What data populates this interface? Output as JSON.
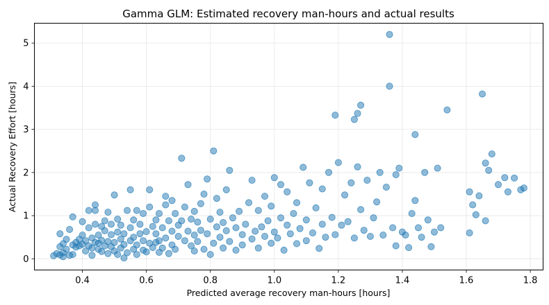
{
  "chart_data": {
    "type": "scatter",
    "title": "Gamma GLM: Estimated recovery man-hours and actual results",
    "xlabel": "Predicted average recovery man-hours [hours]",
    "ylabel": "Actual Recovery Effort [hours]",
    "xlim": [
      0.25,
      1.84
    ],
    "ylim": [
      -0.26,
      5.46
    ],
    "x_ticks": [
      0.4,
      0.6,
      0.8,
      1.0,
      1.2,
      1.4,
      1.6,
      1.8
    ],
    "x_tick_labels": [
      "0.4",
      "0.6",
      "0.8",
      "1.0",
      "1.2",
      "1.4",
      "1.6",
      "1.8"
    ],
    "y_ticks": [
      0,
      1,
      2,
      3,
      4,
      5
    ],
    "y_tick_labels": [
      "0",
      "1",
      "2",
      "3",
      "4",
      "5"
    ],
    "grid": true,
    "legend": "none",
    "point_color": "#1f77b4",
    "point_opacity": 0.5,
    "points": [
      [
        0.31,
        0.07
      ],
      [
        0.32,
        0.12
      ],
      [
        0.33,
        0.09
      ],
      [
        0.33,
        0.28
      ],
      [
        0.33,
        0.58
      ],
      [
        0.34,
        0.05
      ],
      [
        0.34,
        0.35
      ],
      [
        0.34,
        0.14
      ],
      [
        0.35,
        0.22
      ],
      [
        0.35,
        0.45
      ],
      [
        0.36,
        0.08
      ],
      [
        0.36,
        0.68
      ],
      [
        0.37,
        0.32
      ],
      [
        0.37,
        0.97
      ],
      [
        0.37,
        0.1
      ],
      [
        0.38,
        0.27
      ],
      [
        0.38,
        0.38
      ],
      [
        0.39,
        0.45
      ],
      [
        0.39,
        0.3
      ],
      [
        0.4,
        0.55
      ],
      [
        0.4,
        0.34
      ],
      [
        0.4,
        0.86
      ],
      [
        0.41,
        0.18
      ],
      [
        0.41,
        0.42
      ],
      [
        0.42,
        0.3
      ],
      [
        0.42,
        0.72
      ],
      [
        0.42,
        1.12
      ],
      [
        0.43,
        0.08
      ],
      [
        0.43,
        0.25
      ],
      [
        0.43,
        0.48
      ],
      [
        0.44,
        0.38
      ],
      [
        0.44,
        0.8
      ],
      [
        0.44,
        1.25
      ],
      [
        0.44,
        1.12
      ],
      [
        0.45,
        0.22
      ],
      [
        0.45,
        0.55
      ],
      [
        0.45,
        0.36
      ],
      [
        0.46,
        0.17
      ],
      [
        0.46,
        0.75
      ],
      [
        0.46,
        0.43
      ],
      [
        0.47,
        0.3
      ],
      [
        0.47,
        0.65
      ],
      [
        0.47,
        0.88
      ],
      [
        0.48,
        0.12
      ],
      [
        0.48,
        0.4
      ],
      [
        0.48,
        1.08
      ],
      [
        0.49,
        0.28
      ],
      [
        0.49,
        0.56
      ],
      [
        0.49,
        0.8
      ],
      [
        0.5,
        0.18
      ],
      [
        0.5,
        0.38
      ],
      [
        0.5,
        1.48
      ],
      [
        0.51,
        0.1
      ],
      [
        0.51,
        0.62
      ],
      [
        0.51,
        0.92
      ],
      [
        0.52,
        0.25
      ],
      [
        0.52,
        0.46
      ],
      [
        0.52,
        0.78
      ],
      [
        0.53,
        0.02
      ],
      [
        0.53,
        0.33
      ],
      [
        0.53,
        0.58
      ],
      [
        0.54,
        0.14
      ],
      [
        0.54,
        1.12
      ],
      [
        0.55,
        0.42
      ],
      [
        0.55,
        0.72
      ],
      [
        0.55,
        1.6
      ],
      [
        0.56,
        0.22
      ],
      [
        0.56,
        0.5
      ],
      [
        0.56,
        0.9
      ],
      [
        0.57,
        0.1
      ],
      [
        0.57,
        0.32
      ],
      [
        0.57,
        1.12
      ],
      [
        0.58,
        0.58
      ],
      [
        0.58,
        0.8
      ],
      [
        0.59,
        0.2
      ],
      [
        0.59,
        0.42
      ],
      [
        0.59,
        1.05
      ],
      [
        0.6,
        0.16
      ],
      [
        0.6,
        0.63
      ],
      [
        0.61,
        0.36
      ],
      [
        0.61,
        1.2
      ],
      [
        0.61,
        1.6
      ],
      [
        0.62,
        0.26
      ],
      [
        0.62,
        0.75
      ],
      [
        0.63,
        0.38
      ],
      [
        0.63,
        0.58
      ],
      [
        0.63,
        0.9
      ],
      [
        0.64,
        0.15
      ],
      [
        0.64,
        0.42
      ],
      [
        0.64,
        1.05
      ],
      [
        0.65,
        0.25
      ],
      [
        0.65,
        0.72
      ],
      [
        0.66,
        0.48
      ],
      [
        0.66,
        1.25
      ],
      [
        0.66,
        1.45
      ],
      [
        0.67,
        0.12
      ],
      [
        0.67,
        0.88
      ],
      [
        0.68,
        0.32
      ],
      [
        0.68,
        0.64
      ],
      [
        0.68,
        1.35
      ],
      [
        0.69,
        0.22
      ],
      [
        0.69,
        1.05
      ],
      [
        0.7,
        0.52
      ],
      [
        0.7,
        0.78
      ],
      [
        0.71,
        2.33
      ],
      [
        0.71,
        0.88
      ],
      [
        0.72,
        0.42
      ],
      [
        0.72,
        1.2
      ],
      [
        0.73,
        0.64
      ],
      [
        0.73,
        1.72
      ],
      [
        0.74,
        0.3
      ],
      [
        0.74,
        0.92
      ],
      [
        0.75,
        0.18
      ],
      [
        0.75,
        0.55
      ],
      [
        0.75,
        1.1
      ],
      [
        0.76,
        0.4
      ],
      [
        0.76,
        0.85
      ],
      [
        0.77,
        0.66
      ],
      [
        0.77,
        1.28
      ],
      [
        0.78,
        0.22
      ],
      [
        0.78,
        1.5
      ],
      [
        0.79,
        0.58
      ],
      [
        0.79,
        1.85
      ],
      [
        0.8,
        0.1
      ],
      [
        0.8,
        0.92
      ],
      [
        0.81,
        2.5
      ],
      [
        0.81,
        0.36
      ],
      [
        0.82,
        0.74
      ],
      [
        0.82,
        1.4
      ],
      [
        0.83,
        0.5
      ],
      [
        0.83,
        1.08
      ],
      [
        0.84,
        0.25
      ],
      [
        0.84,
        0.84
      ],
      [
        0.85,
        0.65
      ],
      [
        0.85,
        1.6
      ],
      [
        0.86,
        2.05
      ],
      [
        0.86,
        0.4
      ],
      [
        0.87,
        0.95
      ],
      [
        0.88,
        0.2
      ],
      [
        0.88,
        0.72
      ],
      [
        0.89,
        1.1
      ],
      [
        0.9,
        0.56
      ],
      [
        0.9,
        0.32
      ],
      [
        0.91,
        0.8
      ],
      [
        0.92,
        1.3
      ],
      [
        0.93,
        0.46
      ],
      [
        0.93,
        1.82
      ],
      [
        0.94,
        0.64
      ],
      [
        0.95,
        0.25
      ],
      [
        0.95,
        1.12
      ],
      [
        0.96,
        0.74
      ],
      [
        0.97,
        0.52
      ],
      [
        0.97,
        1.45
      ],
      [
        0.98,
        0.88
      ],
      [
        0.99,
        0.36
      ],
      [
        0.99,
        1.22
      ],
      [
        1.0,
        0.62
      ],
      [
        1.0,
        1.88
      ],
      [
        1.01,
        0.48
      ],
      [
        1.02,
        1.72
      ],
      [
        1.02,
        0.95
      ],
      [
        1.03,
        0.2
      ],
      [
        1.04,
        0.78
      ],
      [
        1.04,
        1.55
      ],
      [
        1.05,
        0.58
      ],
      [
        1.06,
        1.05
      ],
      [
        1.07,
        0.35
      ],
      [
        1.07,
        1.3
      ],
      [
        1.08,
        0.7
      ],
      [
        1.09,
        2.12
      ],
      [
        1.1,
        0.9
      ],
      [
        1.1,
        0.42
      ],
      [
        1.11,
        1.76
      ],
      [
        1.12,
        0.6
      ],
      [
        1.13,
        1.18
      ],
      [
        1.14,
        0.24
      ],
      [
        1.15,
        0.8
      ],
      [
        1.15,
        1.62
      ],
      [
        1.16,
        0.5
      ],
      [
        1.17,
        2.0
      ],
      [
        1.18,
        0.96
      ],
      [
        1.19,
        0.56
      ],
      [
        1.19,
        3.33
      ],
      [
        1.2,
        2.23
      ],
      [
        1.21,
        0.78
      ],
      [
        1.22,
        1.48
      ],
      [
        1.23,
        0.86
      ],
      [
        1.24,
        1.76
      ],
      [
        1.25,
        0.48
      ],
      [
        1.25,
        3.23
      ],
      [
        1.26,
        3.37
      ],
      [
        1.26,
        2.13
      ],
      [
        1.27,
        3.56
      ],
      [
        1.27,
        1.14
      ],
      [
        1.28,
        0.66
      ],
      [
        1.29,
        1.82
      ],
      [
        1.3,
        0.52
      ],
      [
        1.31,
        0.95
      ],
      [
        1.32,
        1.32
      ],
      [
        1.33,
        2.0
      ],
      [
        1.34,
        0.55
      ],
      [
        1.35,
        1.66
      ],
      [
        1.36,
        5.2
      ],
      [
        1.36,
        4.0
      ],
      [
        1.37,
        0.72
      ],
      [
        1.38,
        1.95
      ],
      [
        1.38,
        0.3
      ],
      [
        1.39,
        2.1
      ],
      [
        1.4,
        0.62
      ],
      [
        1.41,
        0.55
      ],
      [
        1.42,
        0.26
      ],
      [
        1.43,
        1.05
      ],
      [
        1.44,
        2.88
      ],
      [
        1.44,
        1.35
      ],
      [
        1.45,
        0.72
      ],
      [
        1.46,
        0.5
      ],
      [
        1.47,
        2.0
      ],
      [
        1.48,
        0.9
      ],
      [
        1.49,
        0.28
      ],
      [
        1.5,
        0.62
      ],
      [
        1.51,
        2.1
      ],
      [
        1.52,
        0.72
      ],
      [
        1.54,
        3.45
      ],
      [
        1.61,
        1.55
      ],
      [
        1.61,
        0.6
      ],
      [
        1.62,
        1.25
      ],
      [
        1.63,
        1.02
      ],
      [
        1.64,
        1.46
      ],
      [
        1.65,
        3.82
      ],
      [
        1.66,
        2.22
      ],
      [
        1.66,
        0.88
      ],
      [
        1.67,
        2.05
      ],
      [
        1.68,
        2.43
      ],
      [
        1.7,
        1.72
      ],
      [
        1.72,
        1.88
      ],
      [
        1.73,
        1.55
      ],
      [
        1.75,
        1.87
      ],
      [
        1.77,
        1.6
      ],
      [
        1.78,
        1.64
      ]
    ]
  }
}
